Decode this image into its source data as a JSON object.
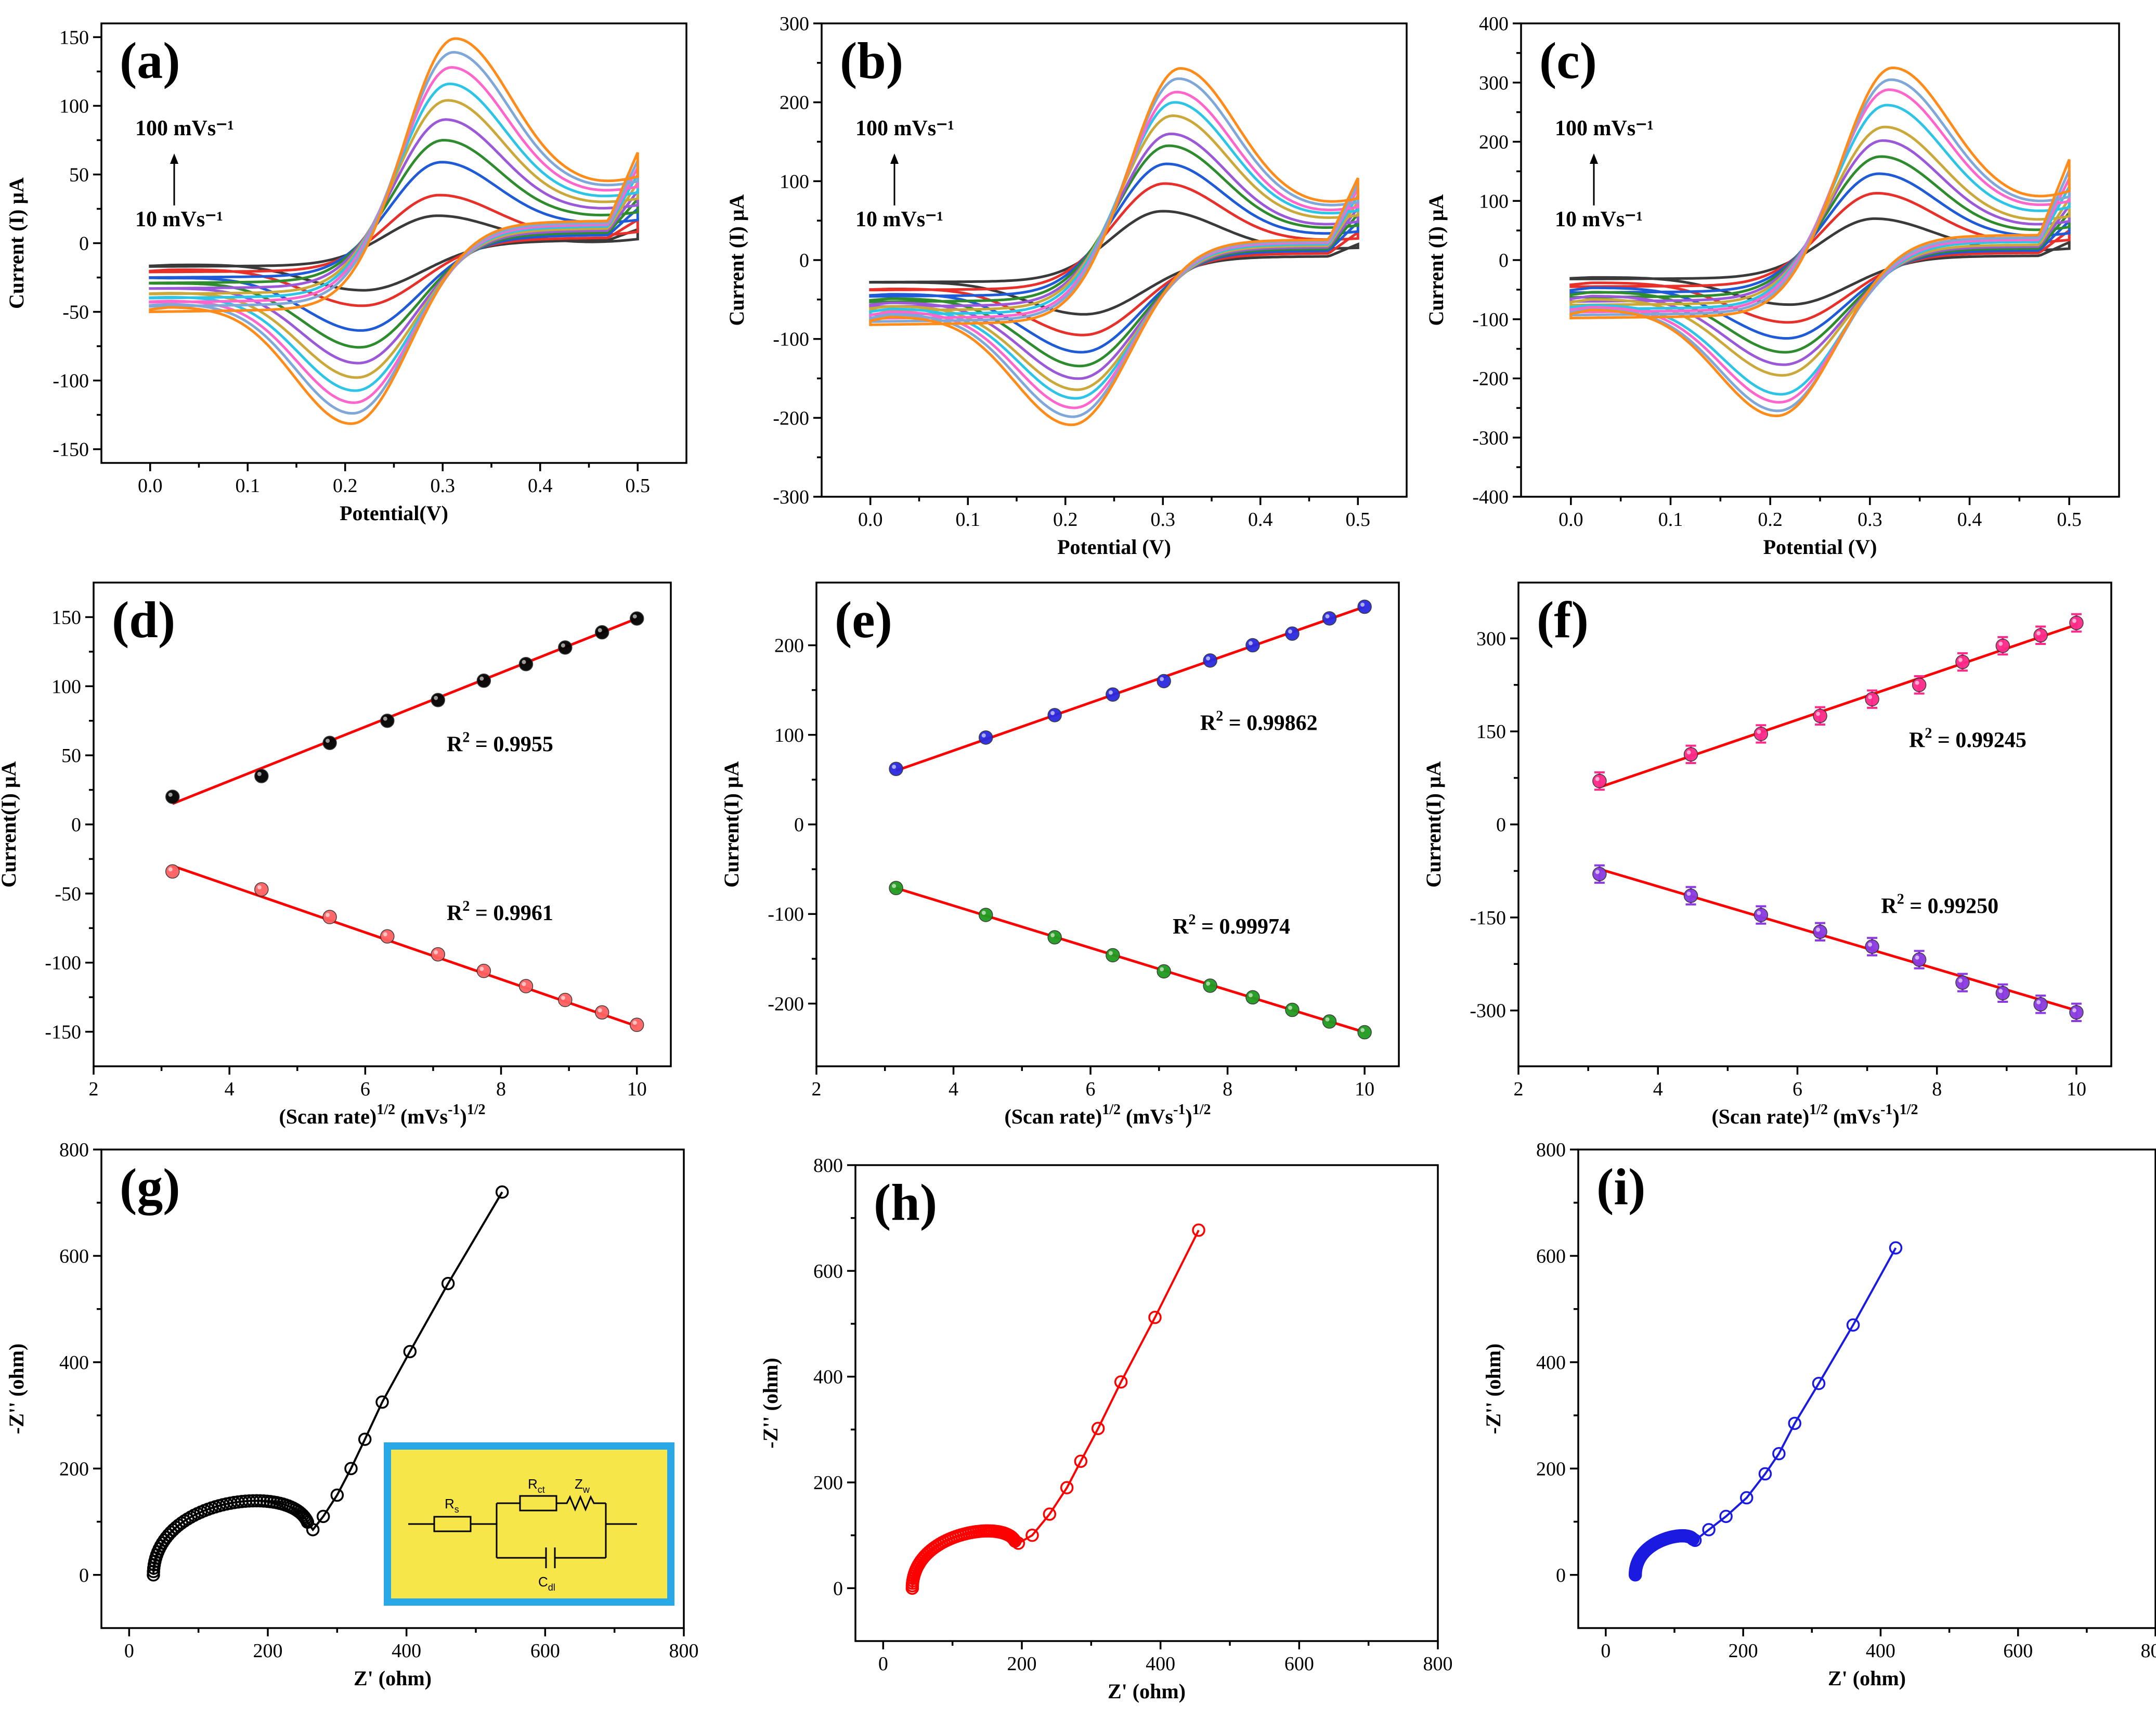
{
  "figure": {
    "colors": {
      "cv_series": [
        "#3a3a3a",
        "#e8302a",
        "#1f5bd6",
        "#2e8b2e",
        "#9b59d8",
        "#caa83a",
        "#2ec4e6",
        "#ff66cc",
        "#7fa7d8",
        "#6b8f1a",
        "#ff8c1a"
      ],
      "fit_line": "#ff0000",
      "anodic_d": "#000000",
      "cathodic_d": "#ff6060",
      "anodic_e": "#2a2ae0",
      "cathodic_e": "#1f9a1f",
      "anodic_f": "#ff2a8a",
      "cathodic_f": "#8a3ae0",
      "eis_g": "#000000",
      "eis_h": "#ff0000",
      "eis_i": "#1a1ae0",
      "inset_bg": "#f7e64a",
      "inset_border": "#29a8e8"
    },
    "inset_circuit": {
      "rs": "R",
      "rs_sub": "s",
      "rct": "R",
      "rct_sub": "ct",
      "zw": "Z",
      "zw_sub": "w",
      "cdl": "C",
      "cdl_sub": "dl"
    }
  },
  "chart_data": [
    {
      "id": "a",
      "type": "line",
      "panel_label": "(a)",
      "xlabel": "Potential(V)",
      "ylabel": "Current (I) μA",
      "xlim": [
        -0.05,
        0.55
      ],
      "ylim": [
        -160,
        160
      ],
      "xticks": [
        0.0,
        0.1,
        0.2,
        0.3,
        0.4,
        0.5
      ],
      "xtick_labels": [
        "0.0",
        "0.1",
        "0.2",
        "0.3",
        "0.4",
        "0.5"
      ],
      "yticks": [
        -150,
        -100,
        -50,
        0,
        50,
        100,
        150
      ],
      "ytick_labels": [
        "-150",
        "-100",
        "-50",
        "0",
        "50",
        "100",
        "150"
      ],
      "annotation_top": "100 mVs⁻¹",
      "annotation_bottom": "10 mVs⁻¹",
      "cv": {
        "ip_anodic": [
          20,
          35,
          59,
          75,
          90,
          104,
          116,
          128,
          139,
          149
        ],
        "ip_cathodic": [
          -34,
          -47,
          -67,
          -81,
          -94,
          -106,
          -117,
          -127,
          -136,
          -145
        ],
        "e_pa": 0.295,
        "e_pc": 0.22,
        "e_half": 0.345,
        "end_current": [
          10,
          17,
          25,
          32,
          38,
          44,
          50,
          55,
          60,
          66
        ],
        "start_current": [
          -17,
          -21,
          -25,
          -29,
          -33,
          -37,
          -40,
          -43,
          -46,
          -50
        ]
      }
    },
    {
      "id": "b",
      "type": "line",
      "panel_label": "(b)",
      "xlabel": "Potential (V)",
      "ylabel": "Current (I) μA",
      "xlim": [
        -0.05,
        0.55
      ],
      "ylim": [
        -300,
        300
      ],
      "xticks": [
        0.0,
        0.1,
        0.2,
        0.3,
        0.4,
        0.5
      ],
      "xtick_labels": [
        "0.0",
        "0.1",
        "0.2",
        "0.3",
        "0.4",
        "0.5"
      ],
      "yticks": [
        -300,
        -200,
        -100,
        0,
        100,
        200,
        300
      ],
      "ytick_labels": [
        "-300",
        "-200",
        "-100",
        "0",
        "100",
        "200",
        "300"
      ],
      "annotation_top": "100 mVs⁻¹",
      "annotation_bottom": "10 mVs⁻¹",
      "cv": {
        "ip_anodic": [
          62,
          97,
          122,
          145,
          160,
          183,
          200,
          213,
          230,
          243
        ],
        "ip_cathodic": [
          -71,
          -101,
          -126,
          -146,
          -164,
          -180,
          -193,
          -207,
          -220,
          -232
        ],
        "e_pa": 0.3,
        "e_pc": 0.22,
        "e_half": 0.33,
        "end_current": [
          20,
          35,
          48,
          58,
          66,
          74,
          82,
          90,
          97,
          104
        ],
        "start_current": [
          -28,
          -38,
          -46,
          -53,
          -59,
          -64,
          -69,
          -74,
          -78,
          -82
        ]
      }
    },
    {
      "id": "c",
      "type": "line",
      "panel_label": "(c)",
      "xlabel": "Potential (V)",
      "ylabel": "Current (I) μA",
      "xlim": [
        -0.05,
        0.55
      ],
      "ylim": [
        -400,
        400
      ],
      "xticks": [
        0.0,
        0.1,
        0.2,
        0.3,
        0.4,
        0.5
      ],
      "xtick_labels": [
        "0.0",
        "0.1",
        "0.2",
        "0.3",
        "0.4",
        "0.5"
      ],
      "yticks": [
        -400,
        -300,
        -200,
        -100,
        0,
        100,
        200,
        300,
        400
      ],
      "ytick_labels": [
        "-400",
        "-300",
        "-200",
        "-100",
        "0",
        "100",
        "200",
        "300",
        "400"
      ],
      "annotation_top": "100 mVs⁻¹",
      "annotation_bottom": "10 mVs⁻¹",
      "cv": {
        "ip_anodic": [
          70,
          113,
          146,
          175,
          202,
          225,
          262,
          288,
          305,
          325
        ],
        "ip_cathodic": [
          -80,
          -115,
          -146,
          -173,
          -197,
          -218,
          -255,
          -272,
          -290,
          -303
        ],
        "e_pa": 0.305,
        "e_pc": 0.22,
        "e_half": 0.355,
        "end_current": [
          30,
          50,
          66,
          80,
          92,
          104,
          124,
          138,
          152,
          170
        ],
        "start_current": [
          -32,
          -45,
          -55,
          -63,
          -70,
          -76,
          -83,
          -88,
          -93,
          -98
        ]
      }
    },
    {
      "id": "d",
      "type": "scatter",
      "panel_label": "(d)",
      "xlabel": "(Scan rate)",
      "xlabel_sup": "1/2",
      "xlabel_rest": " (mVs",
      "xlabel_sup2": "-1",
      "xlabel_end": ")",
      "xlabel_sup3": "1/2",
      "ylabel": "Current(I) μA",
      "xlim": [
        2,
        10.5
      ],
      "ylim": [
        -175,
        175
      ],
      "xticks": [
        2,
        4,
        6,
        8,
        10
      ],
      "xtick_labels": [
        "2",
        "4",
        "6",
        "8",
        "10"
      ],
      "yticks": [
        -150,
        -100,
        -50,
        0,
        50,
        100,
        150
      ],
      "ytick_labels": [
        "-150",
        "-100",
        "-50",
        "0",
        "50",
        "100",
        "150"
      ],
      "x": [
        3.162,
        4.472,
        5.477,
        6.325,
        7.071,
        7.746,
        8.367,
        8.944,
        9.487,
        10.0
      ],
      "series": [
        {
          "name": "anodic",
          "values": [
            20,
            35,
            59,
            75,
            90,
            104,
            116,
            128,
            139,
            149
          ],
          "fit": [
            15,
            149
          ],
          "r2_label": "R",
          "r2_value": " = 0.9955"
        },
        {
          "name": "cathodic",
          "values": [
            -34,
            -47,
            -67,
            -81,
            -94,
            -106,
            -117,
            -127,
            -136,
            -145
          ],
          "fit": [
            -30,
            -146
          ],
          "r2_label": "R",
          "r2_value": " = 0.9961"
        }
      ]
    },
    {
      "id": "e",
      "type": "scatter",
      "panel_label": "(e)",
      "xlabel": "(Scan rate)",
      "xlabel_sup": "1/2",
      "xlabel_rest": " (mVs",
      "xlabel_sup2": "-1",
      "xlabel_end": ")",
      "xlabel_sup3": "1/2",
      "ylabel": "Current(I) μA",
      "xlim": [
        2,
        10.5
      ],
      "ylim": [
        -270,
        270
      ],
      "xticks": [
        2,
        4,
        6,
        8,
        10
      ],
      "xtick_labels": [
        "2",
        "4",
        "6",
        "8",
        "10"
      ],
      "yticks": [
        -200,
        -100,
        0,
        100,
        200
      ],
      "ytick_labels": [
        "-200",
        "-100",
        "0",
        "100",
        "200"
      ],
      "x": [
        3.162,
        4.472,
        5.477,
        6.325,
        7.071,
        7.746,
        8.367,
        8.944,
        9.487,
        10.0
      ],
      "series": [
        {
          "name": "anodic",
          "values": [
            62,
            97,
            122,
            145,
            160,
            183,
            200,
            213,
            230,
            243
          ],
          "fit": [
            60,
            243
          ],
          "r2_label": "R",
          "r2_value": " = 0.99862"
        },
        {
          "name": "cathodic",
          "values": [
            -71,
            -101,
            -126,
            -146,
            -164,
            -180,
            -193,
            -207,
            -220,
            -232
          ],
          "fit": [
            -71,
            -232
          ],
          "r2_label": "R",
          "r2_value": " = 0.99974"
        }
      ]
    },
    {
      "id": "f",
      "type": "scatter",
      "panel_label": "(f)",
      "xlabel": "(Scan rate)",
      "xlabel_sup": "1/2",
      "xlabel_rest": " (mVs",
      "xlabel_sup2": "-1",
      "xlabel_end": ")",
      "xlabel_sup3": "1/2",
      "ylabel": "Current(I) μA",
      "xlim": [
        2,
        10.5
      ],
      "ylim": [
        -390,
        390
      ],
      "xticks": [
        2,
        4,
        6,
        8,
        10
      ],
      "xtick_labels": [
        "2",
        "4",
        "6",
        "8",
        "10"
      ],
      "yticks": [
        -300,
        -150,
        0,
        150,
        300
      ],
      "ytick_labels": [
        "-300",
        "-150",
        "0",
        "150",
        "300"
      ],
      "x": [
        3.162,
        4.472,
        5.477,
        6.325,
        7.071,
        7.746,
        8.367,
        8.944,
        9.487,
        10.0
      ],
      "series": [
        {
          "name": "anodic",
          "values": [
            70,
            113,
            146,
            175,
            202,
            225,
            262,
            288,
            305,
            325
          ],
          "err": 14,
          "fit": [
            60,
            322
          ],
          "r2_label": "R",
          "r2_value": " = 0.99245"
        },
        {
          "name": "cathodic",
          "values": [
            -80,
            -115,
            -146,
            -173,
            -197,
            -218,
            -255,
            -272,
            -290,
            -303
          ],
          "err": 14,
          "fit": [
            -72,
            -300
          ],
          "r2_label": "R",
          "r2_value": " = 0.99250"
        }
      ]
    },
    {
      "id": "g",
      "type": "scatter",
      "panel_label": "(g)",
      "xlabel": "Z' (ohm)",
      "ylabel": "-Z'' (ohm)",
      "xlim": [
        -40,
        800
      ],
      "ylim": [
        -100,
        800
      ],
      "xticks": [
        0,
        200,
        400,
        600,
        800
      ],
      "xtick_labels": [
        "0",
        "200",
        "400",
        "600",
        "800"
      ],
      "yticks": [
        0,
        200,
        400,
        600,
        800
      ],
      "ytick_labels": [
        "0",
        "200",
        "400",
        "600",
        "800"
      ],
      "eis": {
        "r_s": 35,
        "r_ct": 225,
        "z_knee": 85,
        "tail": [
          [
            265,
            85
          ],
          [
            280,
            110
          ],
          [
            300,
            150
          ],
          [
            320,
            200
          ],
          [
            340,
            255
          ],
          [
            365,
            325
          ],
          [
            405,
            420
          ],
          [
            460,
            548
          ],
          [
            538,
            720
          ]
        ]
      }
    },
    {
      "id": "h",
      "type": "scatter",
      "panel_label": "(h)",
      "xlabel": "Z' (ohm)",
      "ylabel": "-Z'' (ohm)",
      "xlim": [
        -40,
        800
      ],
      "ylim": [
        -100,
        800
      ],
      "xticks": [
        0,
        200,
        400,
        600,
        800
      ],
      "xtick_labels": [
        "0",
        "200",
        "400",
        "600",
        "800"
      ],
      "yticks": [
        0,
        200,
        400,
        600,
        800
      ],
      "ytick_labels": [
        "0",
        "200",
        "400",
        "600",
        "800"
      ],
      "eis": {
        "r_s": 42,
        "r_ct": 150,
        "z_knee": 82,
        "tail": [
          [
            195,
            85
          ],
          [
            215,
            100
          ],
          [
            240,
            140
          ],
          [
            265,
            190
          ],
          [
            285,
            240
          ],
          [
            310,
            302
          ],
          [
            343,
            390
          ],
          [
            392,
            512
          ],
          [
            455,
            677
          ]
        ]
      }
    },
    {
      "id": "i",
      "type": "scatter",
      "panel_label": "(i)",
      "xlabel": "Z' (ohm)",
      "ylabel": "-Z'' (ohm)",
      "xlim": [
        -40,
        800
      ],
      "ylim": [
        -100,
        800
      ],
      "xticks": [
        0,
        200,
        400,
        600,
        800
      ],
      "xtick_labels": [
        "0",
        "200",
        "400",
        "600",
        "800"
      ],
      "yticks": [
        0,
        200,
        400,
        600,
        800
      ],
      "ytick_labels": [
        "0",
        "200",
        "400",
        "600",
        "800"
      ],
      "eis": {
        "r_s": 43,
        "r_ct": 85,
        "z_knee": 65,
        "tail": [
          [
            130,
            65
          ],
          [
            150,
            85
          ],
          [
            175,
            110
          ],
          [
            205,
            145
          ],
          [
            232,
            190
          ],
          [
            252,
            228
          ],
          [
            275,
            285
          ],
          [
            310,
            360
          ],
          [
            360,
            470
          ],
          [
            422,
            615
          ]
        ]
      }
    }
  ]
}
